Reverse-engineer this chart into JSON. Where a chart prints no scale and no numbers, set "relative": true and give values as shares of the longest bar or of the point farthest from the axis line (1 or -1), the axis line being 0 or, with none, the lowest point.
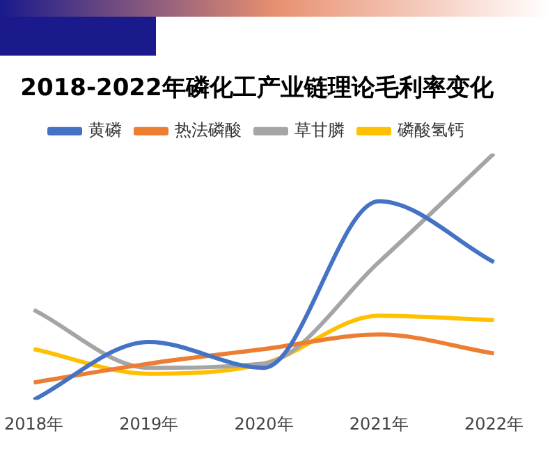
{
  "chart_data": {
    "type": "line",
    "title": "2018-2022年磷化工产业链理论毛利率变化",
    "relative": true,
    "categories": [
      "2018年",
      "2019年",
      "2020年",
      "2021年",
      "2022年"
    ],
    "legend": "top",
    "marker": "none",
    "series": [
      {
        "name": "黄磷",
        "color": "#4472c4",
        "values": [
          0,
          0.235,
          0.13,
          0.806,
          0.559
        ]
      },
      {
        "name": "热法磷酸",
        "color": "#ed7d31",
        "values": [
          0.07,
          0.147,
          0.206,
          0.265,
          0.188
        ]
      },
      {
        "name": "草甘膦",
        "color": "#a5a5a5",
        "values": [
          0.365,
          0.13,
          0.147,
          0.559,
          1
        ]
      },
      {
        "name": "磷酸氢钙",
        "color": "#ffc000",
        "values": [
          0.206,
          0.106,
          0.147,
          0.341,
          0.324
        ]
      }
    ]
  }
}
